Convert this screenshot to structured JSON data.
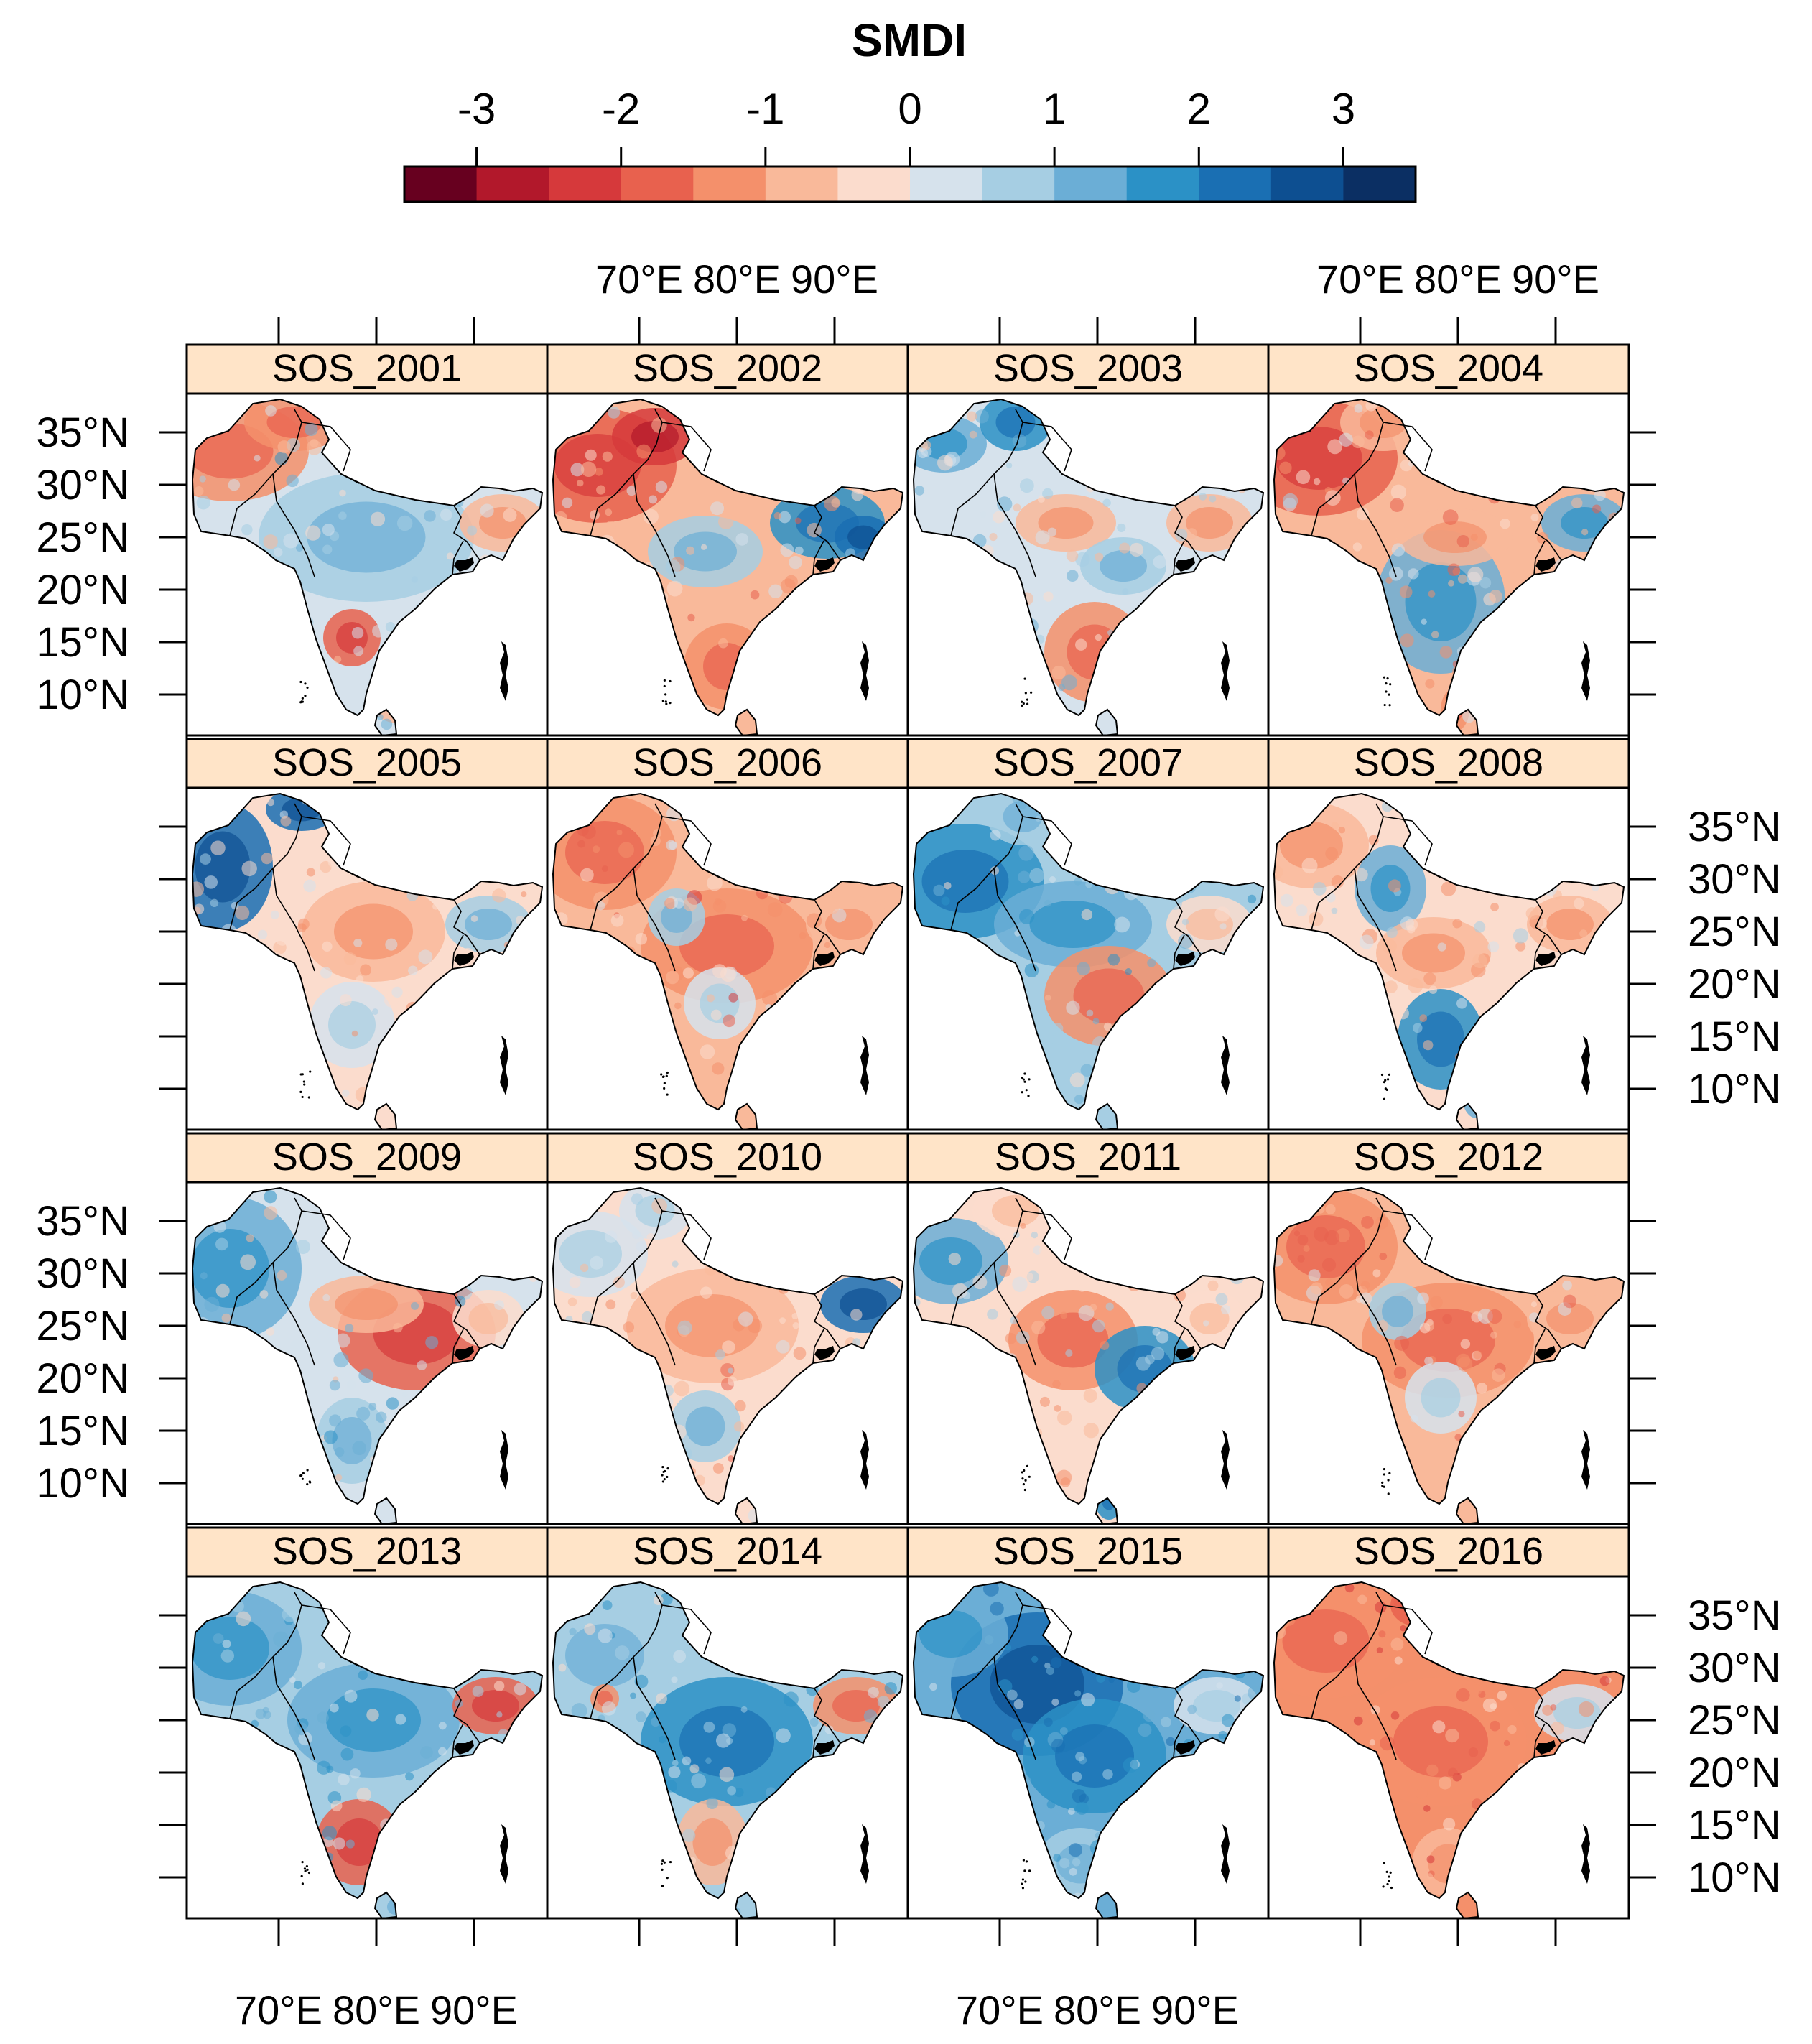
{
  "colorbar": {
    "title": "SMDI",
    "tick_labels": [
      "-3",
      "-2",
      "-1",
      "0",
      "1",
      "2",
      "3"
    ],
    "tick_values": [
      -3,
      -2,
      -1,
      0,
      1,
      2,
      3
    ],
    "range": [
      -3.5,
      3.5
    ],
    "colors": [
      "#67001f",
      "#b2182b",
      "#d6393b",
      "#e8614e",
      "#f4906b",
      "#f9b99a",
      "#fbdccd",
      "#d6e2ec",
      "#a6cee3",
      "#6baed6",
      "#2b91c6",
      "#1a6fb3",
      "#0d4f91",
      "#0b2f63"
    ]
  },
  "axes": {
    "lon_ticks": [
      "70°E",
      "80°E",
      "90°E"
    ],
    "lat_ticks": [
      "35°N",
      "30°N",
      "25°N",
      "20°N",
      "15°N",
      "10°N"
    ]
  },
  "panels": [
    {
      "label": "SOS_2001",
      "pattern": "north_red_center_blue_south_red"
    },
    {
      "label": "SOS_2002",
      "pattern": "west_red_east_blue"
    },
    {
      "label": "SOS_2003",
      "pattern": "mixed_north_blue_south_red"
    },
    {
      "label": "SOS_2004",
      "pattern": "north_red_south_blue"
    },
    {
      "label": "SOS_2005",
      "pattern": "west_blue_center_red"
    },
    {
      "label": "SOS_2006",
      "pattern": "mostly_red"
    },
    {
      "label": "SOS_2007",
      "pattern": "north_blue_south_red"
    },
    {
      "label": "SOS_2008",
      "pattern": "mixed_south_blue"
    },
    {
      "label": "SOS_2009",
      "pattern": "west_blue_east_red"
    },
    {
      "label": "SOS_2010",
      "pattern": "center_red_ne_blue"
    },
    {
      "label": "SOS_2011",
      "pattern": "center_red_east_blue"
    },
    {
      "label": "SOS_2012",
      "pattern": "mostly_red"
    },
    {
      "label": "SOS_2013",
      "pattern": "mostly_blue_south_red"
    },
    {
      "label": "SOS_2014",
      "pattern": "mostly_blue_ne_red"
    },
    {
      "label": "SOS_2015",
      "pattern": "strong_blue"
    },
    {
      "label": "SOS_2016",
      "pattern": "strong_red"
    }
  ]
}
